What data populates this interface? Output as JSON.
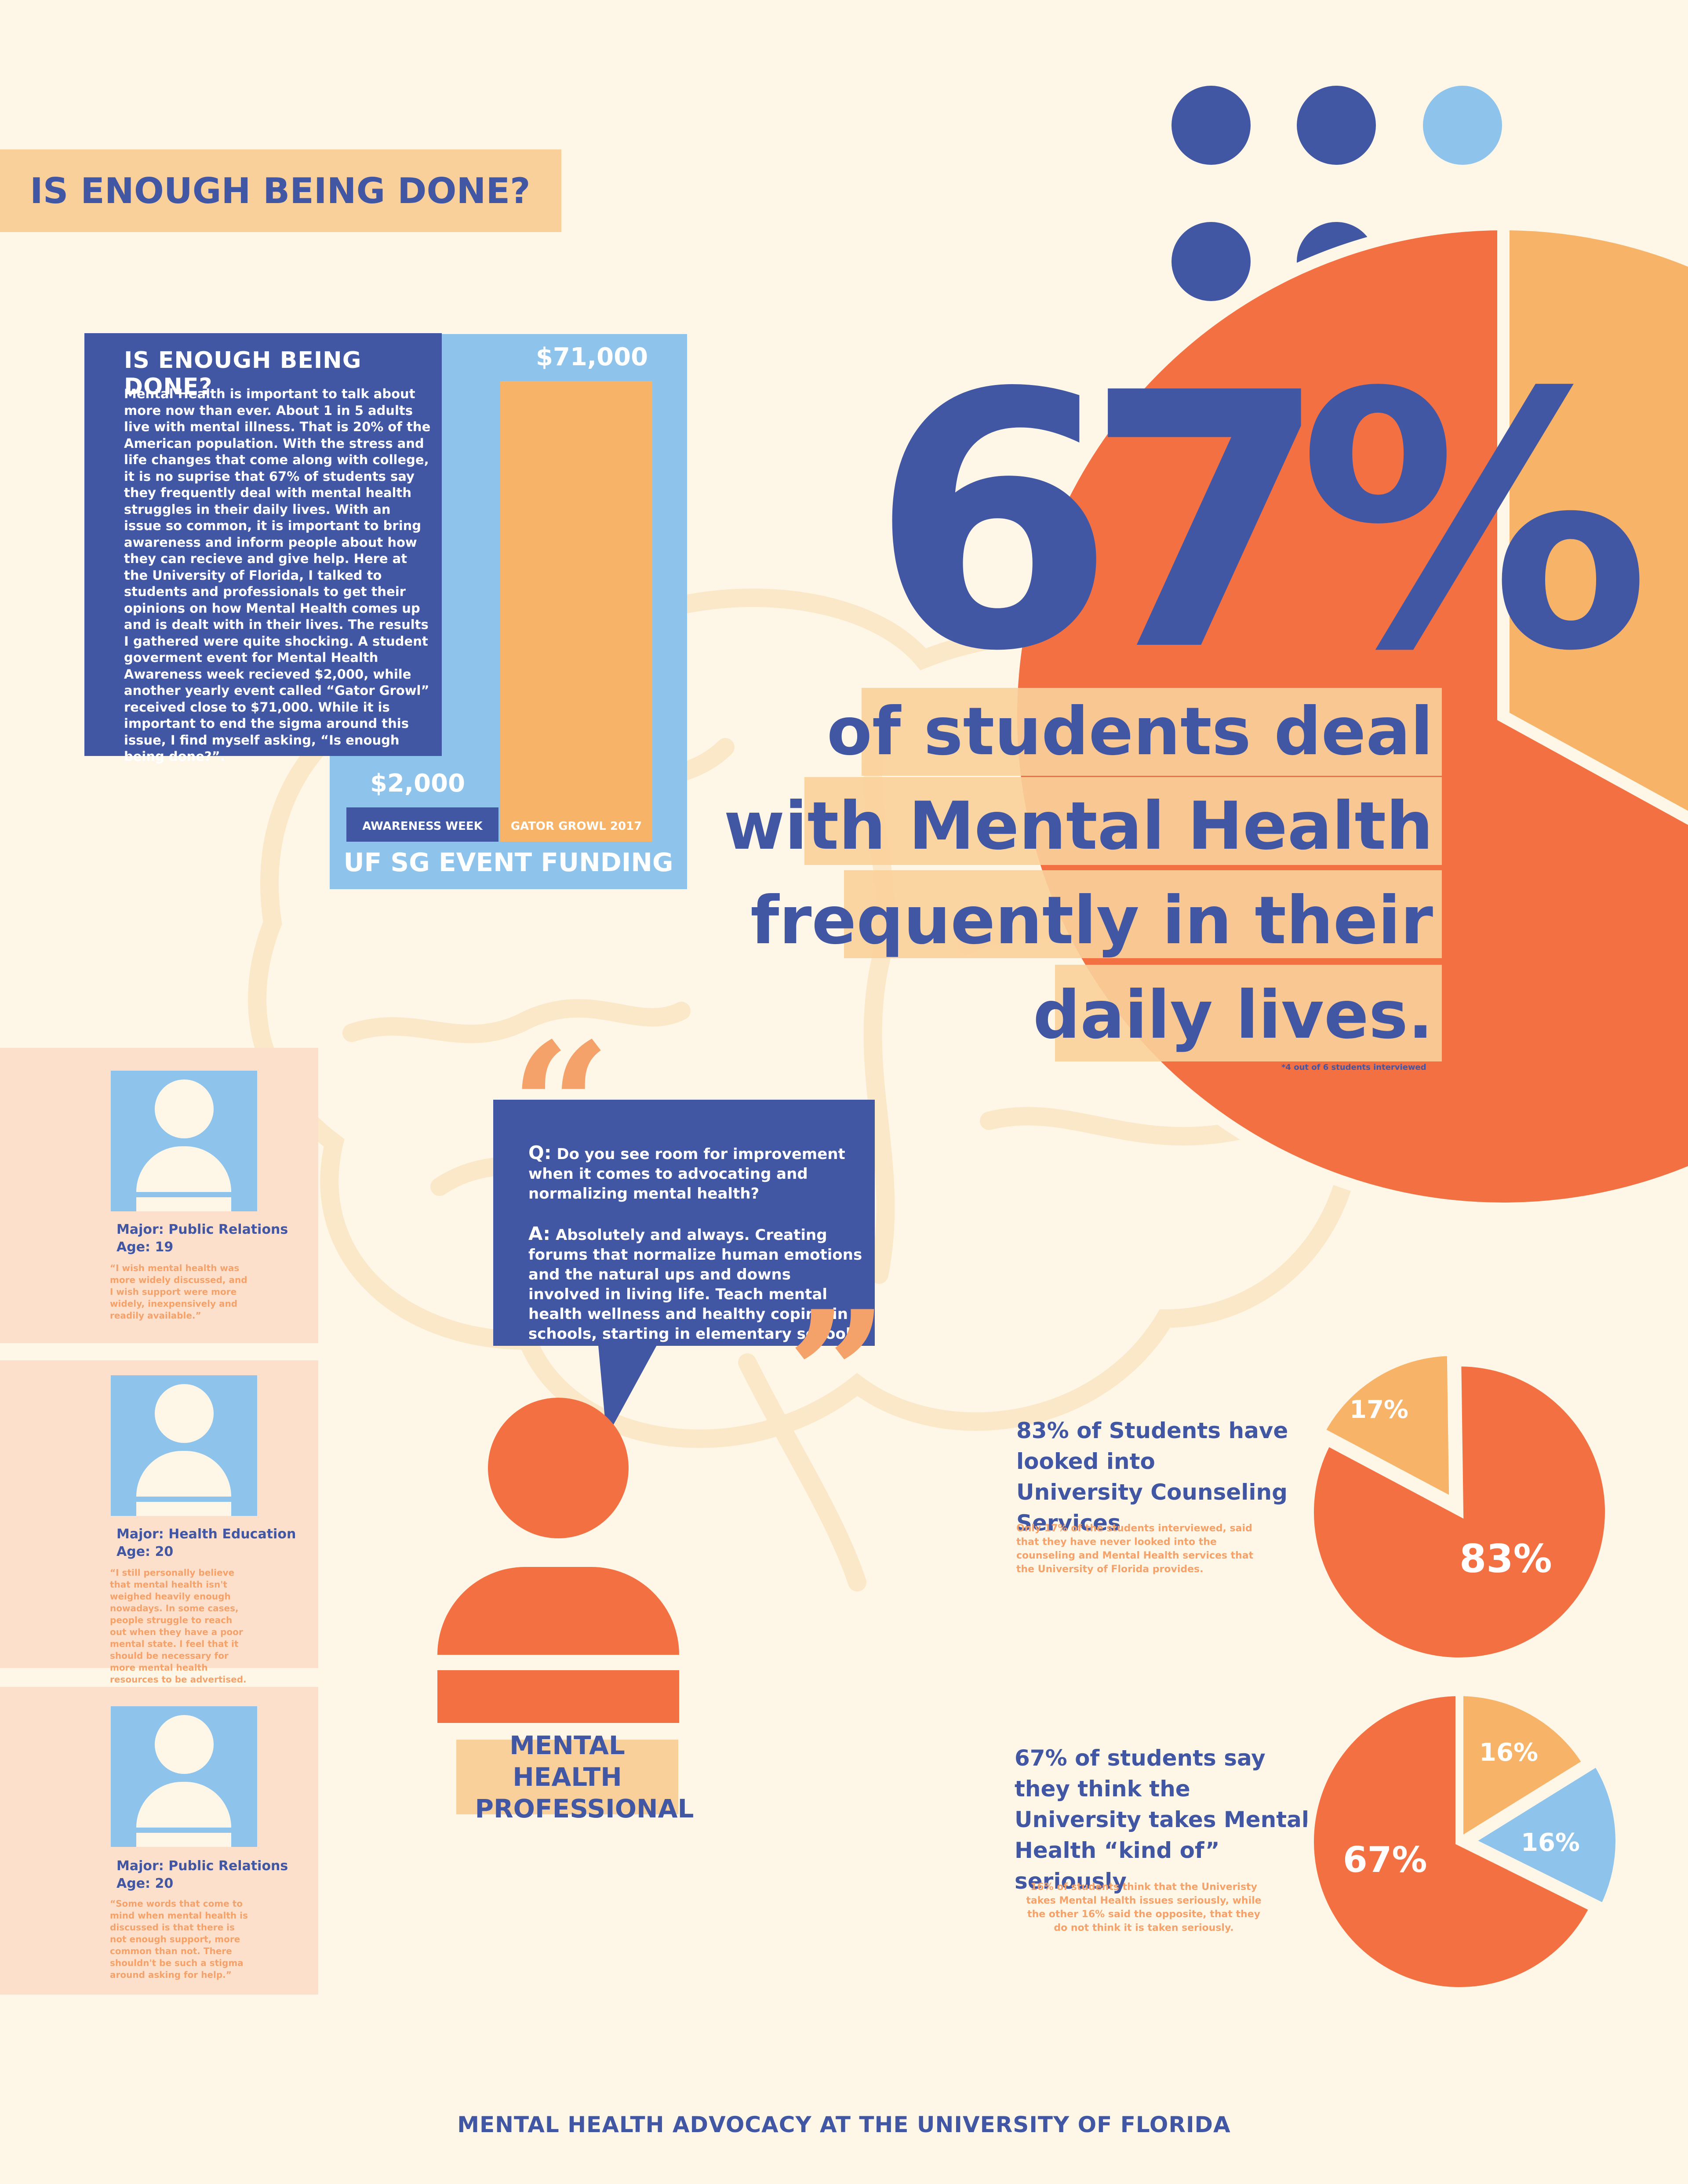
{
  "header": {
    "title": "IS ENOUGH BEING DONE?"
  },
  "intro": {
    "title": "IS ENOUGH BEING DONE?",
    "body": "Mental Health is important to talk about more now than ever. About 1 in 5 adults live with mental illness. That is 20% of the American population. With the stress and life changes that come along with college, it is no suprise that 67% of students say they frequently deal with mental health struggles in their daily lives. With an issue so common, it is important to bring awareness and inform people about how they can recieve and give help. Here at the University of Florida, I talked to students and professionals to get their opinions on how Mental Health comes up and is dealt with in their lives. The results I gathered were quite shocking. A student goverment event for Mental Health Awareness week recieved $2,000, while another yearly event called “Gator Growl” received close to $71,000. While it is important to end the sigma around this issue, I find myself asking, “Is enough being done?”."
  },
  "funding": {
    "title": "UF SG EVENT FUNDING",
    "bars": [
      {
        "label": "AWARENESS WEEK",
        "value": 2000,
        "value_label": "$2,000"
      },
      {
        "label": "GATOR GROWL 2017",
        "value": 71000,
        "value_label": "$71,000"
      }
    ],
    "colors": {
      "awareness": "#4257a4",
      "growl": "#f7b367",
      "panel": "#8ec4ec"
    }
  },
  "headline": {
    "big_number": "67%",
    "lines": [
      "of students deal",
      "with Mental Health",
      "frequently in their",
      "daily lives."
    ],
    "footnote": "*4 out of 6 students interviewed",
    "pie": {
      "major": 67,
      "minor": 33
    }
  },
  "students": [
    {
      "major": "Major: Public Relations",
      "age": "Age: 19",
      "quote": "“I wish mental health was more widely discussed, and I wish support were more widely, inexpensively and readily available.”"
    },
    {
      "major": "Major: Health Education",
      "age": "Age: 20",
      "quote": "“I still personally believe that mental health isn't weighed heavily enough nowadays. In some cases, people struggle to reach out when they have a poor mental state. I feel that it should be necessary for more mental health resources to be advertised. ”"
    },
    {
      "major": "Major: Public Relations",
      "age": "Age: 20",
      "quote": "“Some words that come to mind when mental health is discussed is that there is not enough support, more common than not. There shouldn't be such a stigma around asking for help.”"
    }
  ],
  "interview": {
    "q_label": "Q:",
    "question": "Do you see room for improvement when it comes to advocating and normalizing mental health?",
    "a_label": "A:",
    "answer": "Absolutely and always. Creating forums that normalize human emotions and the natural ups and downs involved in living life. Teach mental health wellness and healthy coping in schools, starting in elementary school.",
    "open_quote": "“",
    "close_quote": "”",
    "role": "MENTAL HEALTH PROFESSIONAL"
  },
  "stats": [
    {
      "title": "83% of Students have looked into University Counseling Services",
      "subtitle": "Only 17% of the students interviewed, said that they have never looked into the counseling and Mental Health services that the University of Florida provides.",
      "slices": [
        {
          "label": "83%",
          "value": 83,
          "color": "#f37043"
        },
        {
          "label": "17%",
          "value": 17,
          "color": "#f7b367"
        }
      ]
    },
    {
      "title": "67% of students say they think the University takes Mental Health “kind of” seriously",
      "subtitle": "16% of students think that the Univeristy takes Mental Health issues seriously, while the other 16% said the opposite, that they do not think it is taken seriously.",
      "slices": [
        {
          "label": "67%",
          "value": 67,
          "color": "#f37043"
        },
        {
          "label": "16%",
          "value": 16,
          "color": "#f7b367"
        },
        {
          "label": "16%",
          "value": 16,
          "color": "#8ec4ec"
        }
      ]
    }
  ],
  "footer": {
    "text": "MENTAL HEALTH ADVOCACY AT THE UNIVERSITY OF FLORIDA"
  },
  "colors": {
    "navy": "#4257a4",
    "orange": "#f37043",
    "peach": "#f9d09a",
    "light_blue": "#8ec4ec",
    "cream": "#fef7e8"
  }
}
